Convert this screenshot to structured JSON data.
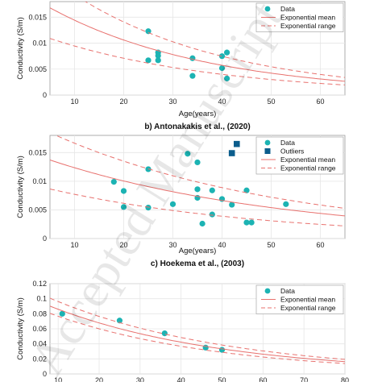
{
  "watermark": "Accepted Manuscript",
  "colors": {
    "data": "#1cb3b3",
    "outliers": "#0b5d8c",
    "mean": "#e8716e",
    "range": "#e8716e",
    "grid": "#e6e6e6"
  },
  "chart_data": [
    {
      "type": "scatter",
      "title": "",
      "xlabel": "Age(years)",
      "ylabel": "Conductivity (S/m)",
      "xlim": [
        5,
        65
      ],
      "ylim": [
        0,
        0.018
      ],
      "xticks": [
        10,
        20,
        30,
        40,
        50,
        60
      ],
      "yticks": [
        0,
        0.005,
        0.01,
        0.015
      ],
      "ytick_labels": [
        "0",
        "0.005",
        "0.01",
        "0.015"
      ],
      "grid": true,
      "legend_position": "top-right",
      "series": [
        {
          "name": "Data",
          "kind": "points",
          "points": [
            [
              25,
              0.0123
            ],
            [
              25,
              0.0067
            ],
            [
              27,
              0.0082
            ],
            [
              27,
              0.0076
            ],
            [
              27,
              0.0067
            ],
            [
              34,
              0.0071
            ],
            [
              34,
              0.0037
            ],
            [
              40,
              0.0075
            ],
            [
              40,
              0.0052
            ],
            [
              41,
              0.0082
            ],
            [
              41,
              0.0032
            ]
          ]
        },
        {
          "name": "Exponential mean",
          "kind": "curve",
          "a": 0.0196,
          "b": 0.0307
        },
        {
          "name": "Exponential range",
          "kind": "curve",
          "a": 0.0265,
          "b": 0.0316
        },
        {
          "name": "",
          "kind": "curve",
          "a": 0.0126,
          "b": 0.0287
        }
      ]
    },
    {
      "type": "scatter",
      "title": "b) Antonakakis et al., (2020)",
      "xlabel": "Age(years)",
      "ylabel": "Conductivity (S/m)",
      "xlim": [
        5,
        65
      ],
      "ylim": [
        0,
        0.018
      ],
      "xticks": [
        10,
        20,
        30,
        40,
        50,
        60
      ],
      "yticks": [
        0,
        0.005,
        0.01,
        0.015
      ],
      "ytick_labels": [
        "0",
        "0.005",
        "0.01",
        "0.015"
      ],
      "grid": true,
      "legend_position": "top-right",
      "series": [
        {
          "name": "Data",
          "kind": "points",
          "points": [
            [
              18,
              0.0099
            ],
            [
              20,
              0.0083
            ],
            [
              20,
              0.0055
            ],
            [
              25,
              0.0121
            ],
            [
              25,
              0.0054
            ],
            [
              30,
              0.006
            ],
            [
              33,
              0.0148
            ],
            [
              35,
              0.0133
            ],
            [
              35,
              0.0086
            ],
            [
              35,
              0.0071
            ],
            [
              36,
              0.0026
            ],
            [
              38,
              0.0084
            ],
            [
              38,
              0.0042
            ],
            [
              40,
              0.0069
            ],
            [
              42,
              0.0059
            ],
            [
              45,
              0.0084
            ],
            [
              45,
              0.0028
            ],
            [
              46,
              0.0028
            ],
            [
              53,
              0.006
            ]
          ]
        },
        {
          "name": "Outliers",
          "kind": "squares",
          "points": [
            [
              43,
              0.0165
            ],
            [
              42,
              0.0149
            ]
          ]
        },
        {
          "name": "Exponential mean",
          "kind": "curve",
          "a": 0.0152,
          "b": 0.0207
        },
        {
          "name": "Exponential range",
          "kind": "curve",
          "a": 0.0205,
          "b": 0.0209
        },
        {
          "name": "",
          "kind": "curve",
          "a": 0.0097,
          "b": 0.0228
        }
      ]
    },
    {
      "type": "scatter",
      "title": "c) Hoekema et al., (2003)",
      "xlabel": "",
      "ylabel": "Conductivity (S/m)",
      "xlim": [
        8,
        80
      ],
      "ylim": [
        0,
        0.12
      ],
      "xticks": [
        10,
        20,
        30,
        40,
        50,
        60,
        70,
        80
      ],
      "yticks": [
        0,
        0.02,
        0.04,
        0.06,
        0.08,
        0.1,
        0.12
      ],
      "ytick_labels": [
        "0",
        "0.02",
        "0.04",
        "0.06",
        "0.08",
        "0.1",
        "0.12"
      ],
      "grid": true,
      "legend_position": "top-right",
      "series": [
        {
          "name": "Data",
          "kind": "points",
          "points": [
            [
              11,
              0.08
            ],
            [
              25,
              0.071
            ],
            [
              36,
              0.054
            ],
            [
              46,
              0.035
            ],
            [
              50,
              0.032
            ]
          ]
        },
        {
          "name": "Exponential mean",
          "kind": "curve",
          "a": 0.109,
          "b": 0.0237
        },
        {
          "name": "Exponential range",
          "kind": "curve",
          "a": 0.121,
          "b": 0.0229
        },
        {
          "name": "",
          "kind": "curve",
          "a": 0.098,
          "b": 0.0245
        }
      ]
    }
  ]
}
